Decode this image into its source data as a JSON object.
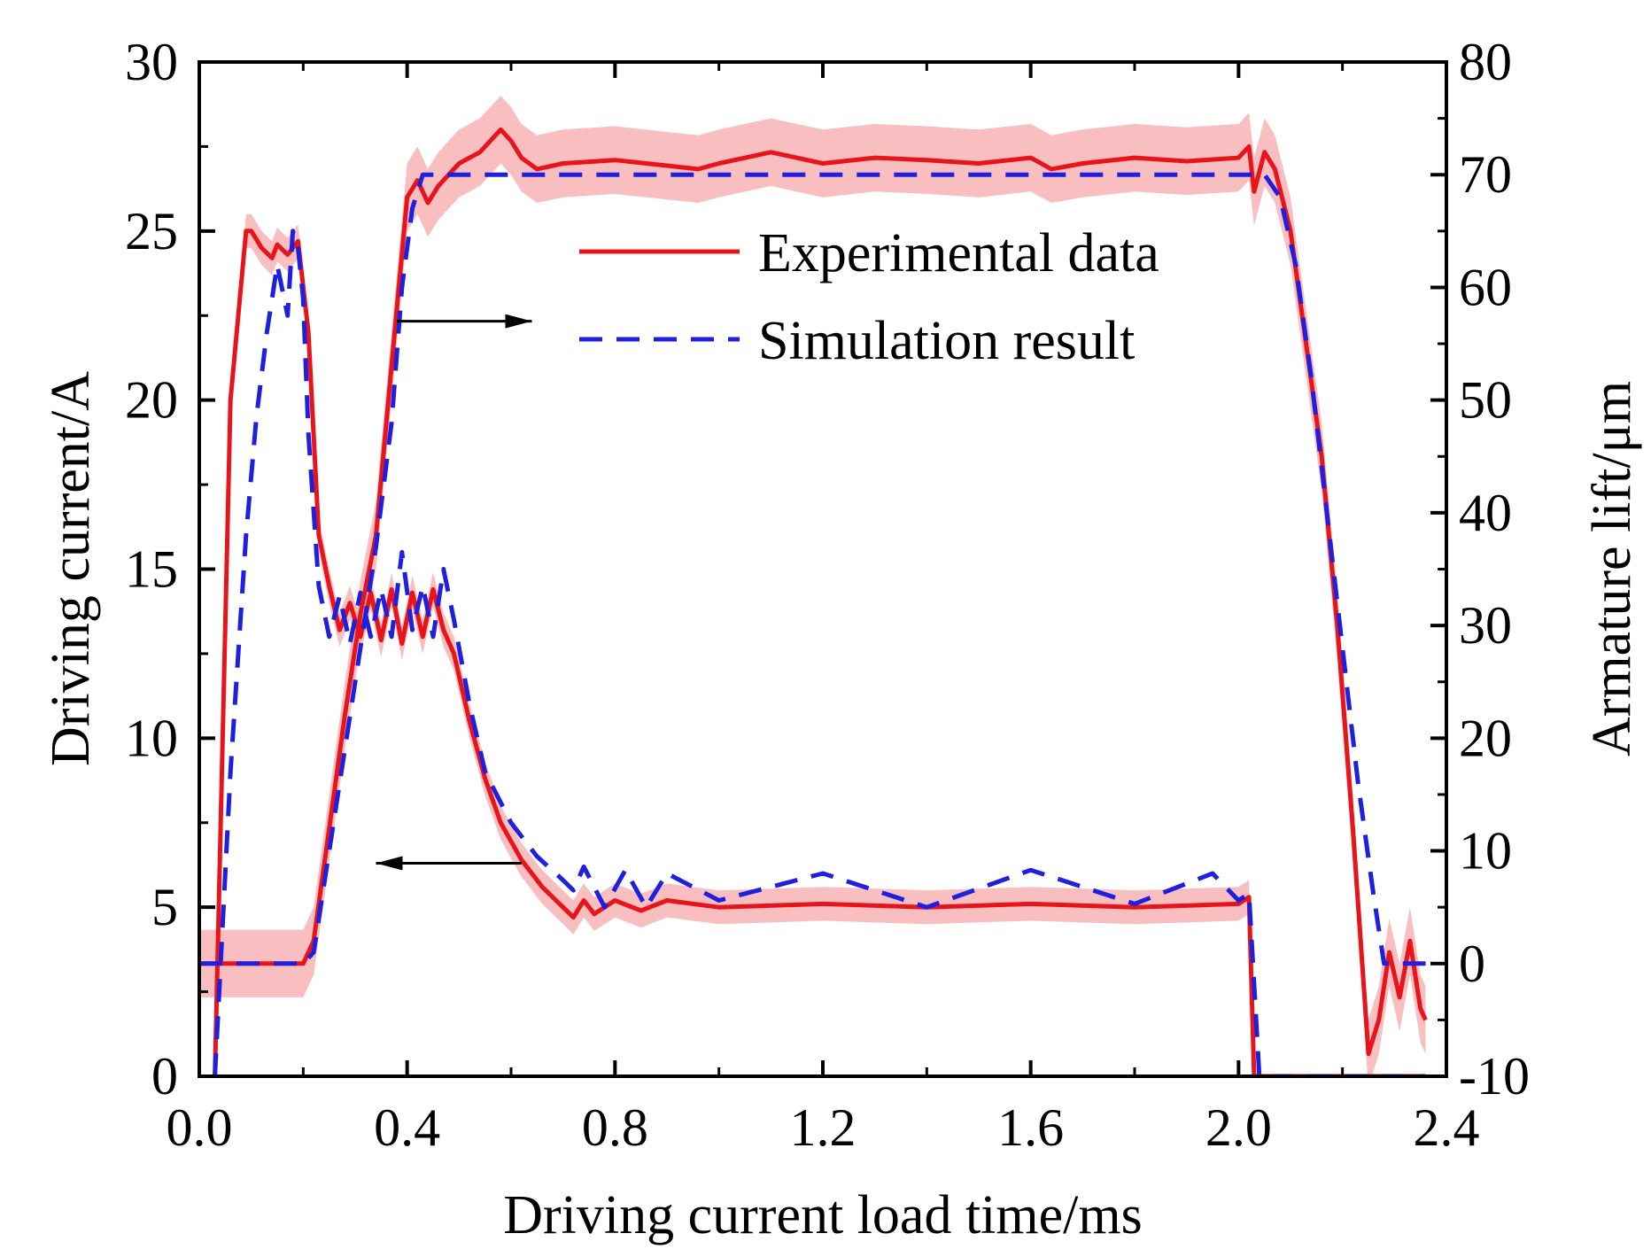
{
  "chart_data": {
    "type": "line",
    "title": "",
    "xlabel": "Driving current load time/ms",
    "ylabel": "Driving current/A",
    "y2label": "Armature lift/μm",
    "xlim": [
      0.0,
      2.4
    ],
    "ylim": [
      0,
      30
    ],
    "y2lim": [
      -10,
      80
    ],
    "xticks": [
      "0.0",
      "0.4",
      "0.8",
      "1.2",
      "1.6",
      "2.0",
      "2.4"
    ],
    "yticks": [
      "0",
      "5",
      "10",
      "15",
      "20",
      "25",
      "30"
    ],
    "y2ticks": [
      "-10",
      "0",
      "10",
      "20",
      "30",
      "40",
      "50",
      "60",
      "70",
      "80"
    ],
    "legend": {
      "position": "top-right",
      "entries": [
        {
          "label": "Experimental data",
          "color": "#e8141b",
          "style": "solid"
        },
        {
          "label": "Simulation result",
          "color": "#1f1fe0",
          "style": "dashed"
        }
      ]
    },
    "annotations": [
      {
        "type": "arrow",
        "points_to": "right-axis",
        "x_start": 0.38,
        "x_end": 0.64,
        "y_axis": "right",
        "y": 57
      },
      {
        "type": "arrow",
        "points_to": "left-axis",
        "x_start": 0.62,
        "x_end": 0.34,
        "y_axis": "left",
        "y": 6.3
      }
    ],
    "series": [
      {
        "name": "Experimental data",
        "quantity": "current",
        "axis": "left",
        "color": "#e8141b",
        "band_color": "#f7b3b5",
        "style": "solid",
        "band": 0.5,
        "x": [
          0.03,
          0.06,
          0.09,
          0.1,
          0.12,
          0.14,
          0.15,
          0.17,
          0.19,
          0.21,
          0.23,
          0.25,
          0.27,
          0.29,
          0.31,
          0.33,
          0.35,
          0.37,
          0.39,
          0.41,
          0.43,
          0.45,
          0.47,
          0.49,
          0.52,
          0.55,
          0.58,
          0.62,
          0.66,
          0.7,
          0.72,
          0.74,
          0.76,
          0.8,
          0.85,
          0.9,
          1.0,
          1.2,
          1.4,
          1.6,
          1.8,
          2.0,
          2.02,
          2.03
        ],
        "y": [
          0,
          20,
          25,
          25,
          24.5,
          24.2,
          24.6,
          24.3,
          24.7,
          22,
          16,
          14.5,
          13.2,
          14.0,
          13.0,
          14.3,
          12.9,
          14.4,
          12.8,
          14.3,
          13.0,
          14.4,
          13.2,
          12.5,
          10.5,
          8.8,
          7.5,
          6.4,
          5.6,
          5.0,
          4.7,
          5.2,
          4.8,
          5.2,
          4.9,
          5.2,
          5.0,
          5.1,
          5.0,
          5.1,
          5.0,
          5.1,
          5.3,
          0
        ],
        "x_tail": [
          2.03,
          2.36
        ],
        "y_tail": [
          0,
          0
        ]
      },
      {
        "name": "Simulation result",
        "quantity": "current",
        "axis": "left",
        "color": "#1f1fe0",
        "style": "dashed",
        "x": [
          0.03,
          0.06,
          0.09,
          0.11,
          0.13,
          0.15,
          0.17,
          0.18,
          0.19,
          0.2,
          0.21,
          0.23,
          0.25,
          0.27,
          0.29,
          0.31,
          0.33,
          0.35,
          0.37,
          0.39,
          0.41,
          0.43,
          0.45,
          0.47,
          0.49,
          0.52,
          0.55,
          0.6,
          0.65,
          0.7,
          0.72,
          0.74,
          0.78,
          0.82,
          0.86,
          0.9,
          1.0,
          1.2,
          1.4,
          1.6,
          1.8,
          1.95,
          2.0,
          2.02,
          2.04
        ],
        "y": [
          0,
          9,
          16,
          19.5,
          22,
          24,
          22.5,
          25,
          24.5,
          23,
          19,
          14.5,
          13.0,
          14.2,
          12.8,
          14.3,
          13.0,
          14.4,
          13.0,
          15.5,
          13.2,
          14.5,
          13.0,
          15.0,
          13.5,
          11.0,
          9.0,
          7.5,
          6.5,
          5.8,
          5.5,
          6.2,
          5.0,
          6.1,
          5.0,
          6.0,
          5.2,
          6.0,
          5.0,
          6.1,
          5.1,
          6.0,
          5.2,
          5.4,
          0
        ],
        "x_tail": [
          2.04,
          2.36
        ],
        "y_tail": [
          0,
          0
        ]
      },
      {
        "name": "Experimental data",
        "quantity": "lift",
        "axis": "right",
        "color": "#e8141b",
        "band_color": "#f7b3b5",
        "style": "solid",
        "band": 3.0,
        "x": [
          0.0,
          0.2,
          0.22,
          0.25,
          0.28,
          0.31,
          0.34,
          0.36,
          0.38,
          0.4,
          0.42,
          0.44,
          0.46,
          0.5,
          0.54,
          0.58,
          0.6,
          0.62,
          0.65,
          0.7,
          0.8,
          0.9,
          0.96,
          1.0,
          1.1,
          1.2,
          1.3,
          1.4,
          1.5,
          1.6,
          1.64,
          1.7,
          1.8,
          1.9,
          2.0,
          2.02,
          2.03,
          2.05,
          2.07,
          2.1,
          2.13,
          2.16,
          2.19,
          2.22,
          2.25,
          2.27,
          2.29,
          2.31,
          2.33,
          2.35,
          2.36
        ],
        "y": [
          0,
          0,
          2,
          12,
          22,
          31,
          38,
          48,
          58,
          68,
          69.5,
          67.5,
          69,
          71,
          72,
          74,
          73,
          71.5,
          70.5,
          71,
          71.3,
          70.8,
          70.5,
          71,
          72,
          71,
          71.5,
          71.3,
          71,
          71.5,
          70.5,
          71,
          71.5,
          71.2,
          71.5,
          72.5,
          68.5,
          72,
          70.5,
          65,
          55,
          45,
          30,
          12,
          -8,
          -5,
          1,
          -3,
          2,
          -4,
          -5
        ],
        "x_tail": [],
        "y_tail": []
      },
      {
        "name": "Simulation result",
        "quantity": "lift",
        "axis": "right",
        "color": "#1f1fe0",
        "style": "dashed",
        "x": [
          0.0,
          0.2,
          0.22,
          0.25,
          0.28,
          0.31,
          0.34,
          0.37,
          0.39,
          0.41,
          0.43,
          1.0,
          1.5,
          2.05,
          2.08,
          2.11,
          2.14,
          2.17,
          2.2,
          2.23,
          2.26,
          2.28,
          2.3,
          2.36
        ],
        "y": [
          0,
          0,
          1,
          10,
          19,
          28,
          37,
          48,
          60,
          67,
          70,
          70,
          70,
          70,
          68,
          62,
          52,
          40,
          28,
          16,
          6,
          0,
          0,
          0
        ],
        "x_tail": [],
        "y_tail": []
      }
    ]
  }
}
